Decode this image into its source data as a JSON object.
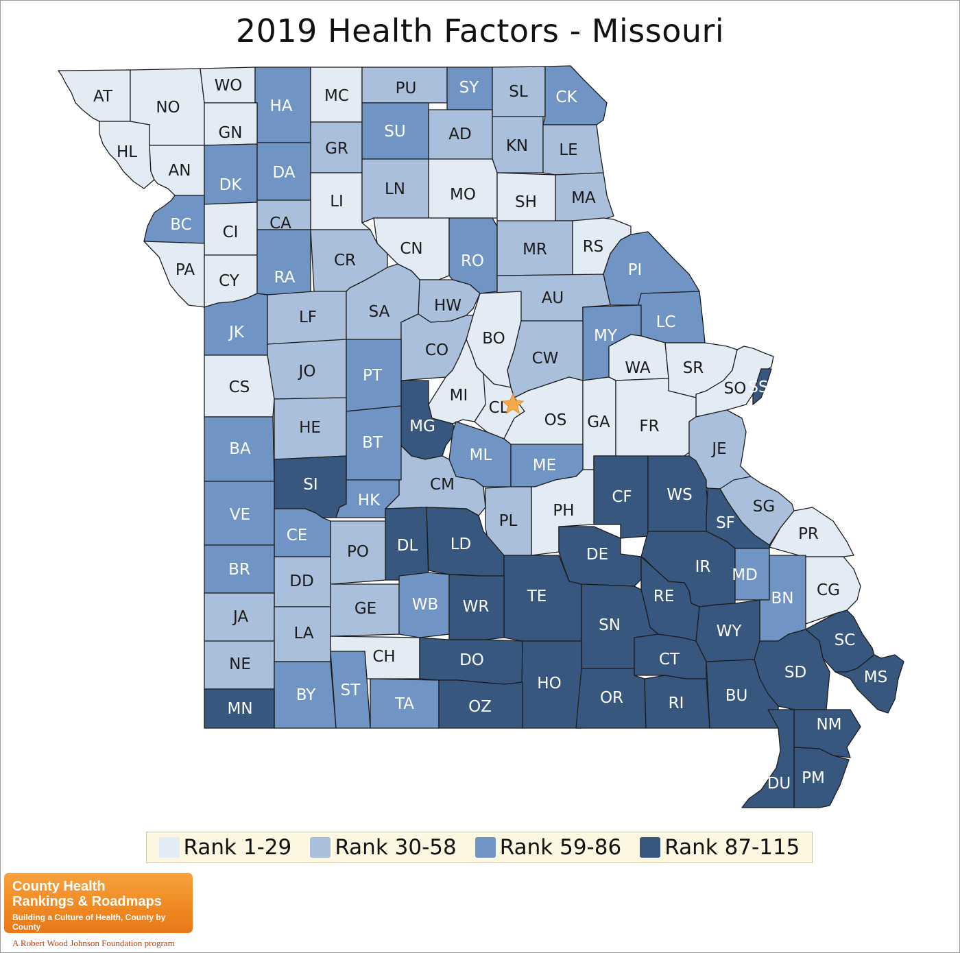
{
  "title": "2019 Health Factors - Missouri",
  "legend": [
    {
      "label": "Rank 1-29",
      "color": "#e3ebf5"
    },
    {
      "label": "Rank 30-58",
      "color": "#aabfdb"
    },
    {
      "label": "Rank 59-86",
      "color": "#7094c3"
    },
    {
      "label": "Rank 87-115",
      "color": "#37577f"
    }
  ],
  "counties": [
    {
      "code": "AT",
      "rank_group": 1
    },
    {
      "code": "NO",
      "rank_group": 1
    },
    {
      "code": "WO",
      "rank_group": 1
    },
    {
      "code": "HA",
      "rank_group": 3
    },
    {
      "code": "MC",
      "rank_group": 1
    },
    {
      "code": "PU",
      "rank_group": 2
    },
    {
      "code": "SY",
      "rank_group": 3
    },
    {
      "code": "SL",
      "rank_group": 2
    },
    {
      "code": "CK",
      "rank_group": 3
    },
    {
      "code": "HL",
      "rank_group": 1
    },
    {
      "code": "GN",
      "rank_group": 1
    },
    {
      "code": "GR",
      "rank_group": 2
    },
    {
      "code": "SU",
      "rank_group": 3
    },
    {
      "code": "AD",
      "rank_group": 2
    },
    {
      "code": "KN",
      "rank_group": 2
    },
    {
      "code": "LE",
      "rank_group": 2
    },
    {
      "code": "AN",
      "rank_group": 1
    },
    {
      "code": "DK",
      "rank_group": 3
    },
    {
      "code": "DA",
      "rank_group": 3
    },
    {
      "code": "LI",
      "rank_group": 1
    },
    {
      "code": "LN",
      "rank_group": 2
    },
    {
      "code": "MO",
      "rank_group": 1
    },
    {
      "code": "SH",
      "rank_group": 1
    },
    {
      "code": "MA",
      "rank_group": 2
    },
    {
      "code": "BC",
      "rank_group": 3
    },
    {
      "code": "CI",
      "rank_group": 1
    },
    {
      "code": "CA",
      "rank_group": 2
    },
    {
      "code": "CN",
      "rank_group": 1
    },
    {
      "code": "RO",
      "rank_group": 3
    },
    {
      "code": "MR",
      "rank_group": 2
    },
    {
      "code": "RS",
      "rank_group": 1
    },
    {
      "code": "PA",
      "rank_group": 1
    },
    {
      "code": "CY",
      "rank_group": 1
    },
    {
      "code": "RA",
      "rank_group": 3
    },
    {
      "code": "CR",
      "rank_group": 2
    },
    {
      "code": "PI",
      "rank_group": 3
    },
    {
      "code": "AU",
      "rank_group": 2
    },
    {
      "code": "HW",
      "rank_group": 2
    },
    {
      "code": "LF",
      "rank_group": 2
    },
    {
      "code": "SA",
      "rank_group": 2
    },
    {
      "code": "JK",
      "rank_group": 3
    },
    {
      "code": "BO",
      "rank_group": 1
    },
    {
      "code": "LC",
      "rank_group": 3
    },
    {
      "code": "MY",
      "rank_group": 3
    },
    {
      "code": "CO",
      "rank_group": 2
    },
    {
      "code": "CW",
      "rank_group": 2
    },
    {
      "code": "JO",
      "rank_group": 2
    },
    {
      "code": "PT",
      "rank_group": 3
    },
    {
      "code": "WA",
      "rank_group": 1
    },
    {
      "code": "SR",
      "rank_group": 1
    },
    {
      "code": "CS",
      "rank_group": 1
    },
    {
      "code": "SO",
      "rank_group": 1
    },
    {
      "code": "SS",
      "rank_group": 4
    },
    {
      "code": "MI",
      "rank_group": 1
    },
    {
      "code": "CL",
      "rank_group": 1
    },
    {
      "code": "MG",
      "rank_group": 4
    },
    {
      "code": "OS",
      "rank_group": 1
    },
    {
      "code": "GA",
      "rank_group": 1
    },
    {
      "code": "FR",
      "rank_group": 1
    },
    {
      "code": "HE",
      "rank_group": 2
    },
    {
      "code": "BA",
      "rank_group": 3
    },
    {
      "code": "BT",
      "rank_group": 3
    },
    {
      "code": "JE",
      "rank_group": 2
    },
    {
      "code": "ML",
      "rank_group": 3
    },
    {
      "code": "ME",
      "rank_group": 3
    },
    {
      "code": "SI",
      "rank_group": 4
    },
    {
      "code": "CM",
      "rank_group": 2
    },
    {
      "code": "CF",
      "rank_group": 4
    },
    {
      "code": "WS",
      "rank_group": 4
    },
    {
      "code": "VE",
      "rank_group": 3
    },
    {
      "code": "HK",
      "rank_group": 3
    },
    {
      "code": "PH",
      "rank_group": 1
    },
    {
      "code": "SG",
      "rank_group": 2
    },
    {
      "code": "SF",
      "rank_group": 4
    },
    {
      "code": "PL",
      "rank_group": 2
    },
    {
      "code": "CE",
      "rank_group": 3
    },
    {
      "code": "DL",
      "rank_group": 4
    },
    {
      "code": "LD",
      "rank_group": 4
    },
    {
      "code": "PR",
      "rank_group": 1
    },
    {
      "code": "PO",
      "rank_group": 2
    },
    {
      "code": "DE",
      "rank_group": 4
    },
    {
      "code": "IR",
      "rank_group": 4
    },
    {
      "code": "MD",
      "rank_group": 3
    },
    {
      "code": "BR",
      "rank_group": 3
    },
    {
      "code": "DD",
      "rank_group": 2
    },
    {
      "code": "TE",
      "rank_group": 4
    },
    {
      "code": "RE",
      "rank_group": 4
    },
    {
      "code": "CG",
      "rank_group": 1
    },
    {
      "code": "BN",
      "rank_group": 3
    },
    {
      "code": "GE",
      "rank_group": 2
    },
    {
      "code": "WB",
      "rank_group": 3
    },
    {
      "code": "WR",
      "rank_group": 4
    },
    {
      "code": "SN",
      "rank_group": 4
    },
    {
      "code": "WY",
      "rank_group": 4
    },
    {
      "code": "JA",
      "rank_group": 2
    },
    {
      "code": "LA",
      "rank_group": 2
    },
    {
      "code": "SC",
      "rank_group": 4
    },
    {
      "code": "CH",
      "rank_group": 1
    },
    {
      "code": "DO",
      "rank_group": 4
    },
    {
      "code": "CT",
      "rank_group": 4
    },
    {
      "code": "NE",
      "rank_group": 2
    },
    {
      "code": "SD",
      "rank_group": 4
    },
    {
      "code": "MS",
      "rank_group": 4
    },
    {
      "code": "HO",
      "rank_group": 4
    },
    {
      "code": "BY",
      "rank_group": 3
    },
    {
      "code": "ST",
      "rank_group": 3
    },
    {
      "code": "TA",
      "rank_group": 3
    },
    {
      "code": "OZ",
      "rank_group": 4
    },
    {
      "code": "OR",
      "rank_group": 4
    },
    {
      "code": "RI",
      "rank_group": 4
    },
    {
      "code": "BU",
      "rank_group": 4
    },
    {
      "code": "MN",
      "rank_group": 4
    },
    {
      "code": "NM",
      "rank_group": 4
    },
    {
      "code": "DU",
      "rank_group": 4
    },
    {
      "code": "PM",
      "rank_group": 4
    }
  ],
  "capital_marker": "star",
  "logo": {
    "line1": "County Health",
    "line2": "Rankings & Roadmaps",
    "tagline": "Building a Culture of Health, County by County",
    "footer": "A Robert Wood Johnson Foundation program"
  }
}
